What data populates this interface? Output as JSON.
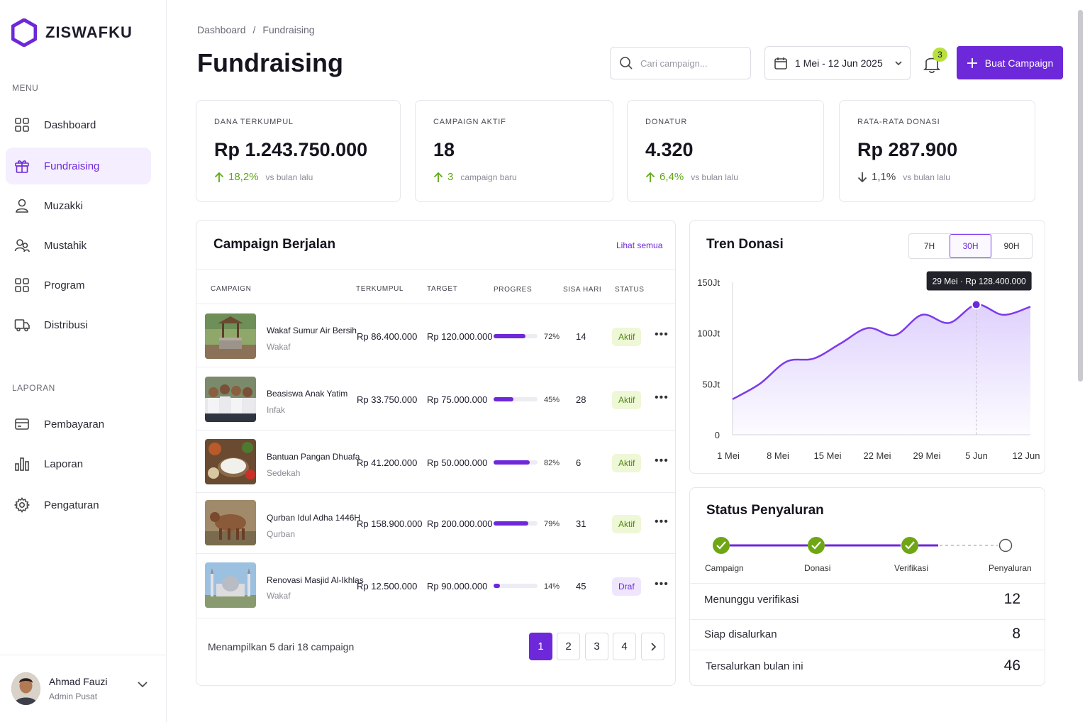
{
  "app": {
    "name": "ZISWAFKU"
  },
  "sidebar": {
    "menu_label": "MENU",
    "menu_items": [
      {
        "label": "Dashboard",
        "icon": "grid-icon"
      },
      {
        "label": "Fundraising",
        "icon": "gift-icon",
        "active": true
      },
      {
        "label": "Muzakki",
        "icon": "user-icon"
      },
      {
        "label": "Mustahik",
        "icon": "users-icon"
      },
      {
        "label": "Program",
        "icon": "grid-icon"
      },
      {
        "label": "Distribusi",
        "icon": "truck-icon"
      }
    ],
    "report_label": "LAPORAN",
    "report_items": [
      {
        "label": "Pembayaran",
        "icon": "card-icon"
      },
      {
        "label": "Laporan",
        "icon": "bar-chart-icon"
      },
      {
        "label": "Pengaturan",
        "icon": "gear-icon"
      }
    ],
    "user": {
      "name": "Ahmad Fauzi",
      "role": "Admin Pusat"
    }
  },
  "header": {
    "breadcrumb": [
      "Dashboard",
      "/",
      "Fundraising"
    ],
    "title": "Fundraising",
    "search_placeholder": "Cari campaign...",
    "date_range": "1 Mei - 12 Jun 2025",
    "notification_count": "3",
    "primary_button": "Buat Campaign"
  },
  "stats": [
    {
      "label": "DANA TERKUMPUL",
      "value": "Rp 1.243.750.000",
      "delta": "18,2%",
      "direction": "up",
      "note": "vs bulan lalu"
    },
    {
      "label": "CAMPAIGN AKTIF",
      "value": "18",
      "delta": "3",
      "direction": "up",
      "note": "campaign baru"
    },
    {
      "label": "DONATUR",
      "value": "4.320",
      "delta": "6,4%",
      "direction": "up",
      "note": "vs bulan lalu"
    },
    {
      "label": "RATA-RATA DONASI",
      "value": "Rp 287.900",
      "delta": "1,1%",
      "direction": "down",
      "note": "vs bulan lalu"
    }
  ],
  "campaigns": {
    "title": "Campaign Berjalan",
    "view_all": "Lihat semua",
    "columns": [
      "CAMPAIGN",
      "TERKUMPUL",
      "TARGET",
      "PROGRES",
      "SISA HARI",
      "STATUS"
    ],
    "rows": [
      {
        "name": "Wakaf Sumur Air Bersih",
        "category": "Wakaf",
        "collected": "Rp 86.400.000",
        "target": "Rp 120.000.000",
        "progress": 72,
        "progress_label": "72%",
        "days_left": "14",
        "status": "Aktif"
      },
      {
        "name": "Beasiswa Anak Yatim",
        "category": "Infak",
        "collected": "Rp 33.750.000",
        "target": "Rp 75.000.000",
        "progress": 45,
        "progress_label": "45%",
        "days_left": "28",
        "status": "Aktif"
      },
      {
        "name": "Bantuan Pangan Dhuafa",
        "category": "Sedekah",
        "collected": "Rp 41.200.000",
        "target": "Rp 50.000.000",
        "progress": 82,
        "progress_label": "82%",
        "days_left": "6",
        "status": "Aktif"
      },
      {
        "name": "Qurban Idul Adha 1446H",
        "category": "Qurban",
        "collected": "Rp 158.900.000",
        "target": "Rp 200.000.000",
        "progress": 79,
        "progress_label": "79%",
        "days_left": "31",
        "status": "Aktif"
      },
      {
        "name": "Renovasi Masjid Al-Ikhlas",
        "category": "Wakaf",
        "collected": "Rp 12.500.000",
        "target": "Rp 90.000.000",
        "progress": 14,
        "progress_label": "14%",
        "days_left": "45",
        "status": "Draf"
      }
    ],
    "footer_note": "Menampilkan 5 dari 18 campaign",
    "pages": [
      "1",
      "2",
      "3",
      "4"
    ]
  },
  "trend": {
    "title": "Tren Donasi",
    "ranges": [
      "7H",
      "30H",
      "90H"
    ],
    "selected_range": "30H",
    "tooltip": "29 Mei · Rp 128.400.000",
    "chart_data": {
      "type": "area",
      "y_ticks": [
        "150Jt",
        "100Jt",
        "50Jt",
        "0"
      ],
      "x_ticks": [
        "1 Mei",
        "8 Mei",
        "15 Mei",
        "22 Mei",
        "29 Mei",
        "5 Jun",
        "12 Jun"
      ],
      "ylim": [
        0,
        150
      ],
      "series": [
        {
          "values": [
            35,
            50,
            72,
            75,
            90,
            105,
            98,
            118,
            110,
            128,
            118,
            126
          ]
        }
      ],
      "highlight_index": 9
    }
  },
  "distribution": {
    "title": "Status Penyaluran",
    "steps": [
      "Campaign",
      "Donasi",
      "Verifikasi",
      "Penyaluran"
    ],
    "completed_steps": 3,
    "rows": [
      {
        "label": "Menunggu verifikasi",
        "value": "12"
      },
      {
        "label": "Siap disalurkan",
        "value": "8"
      },
      {
        "label": "Tersalurkan bulan ini",
        "value": "46"
      }
    ]
  }
}
